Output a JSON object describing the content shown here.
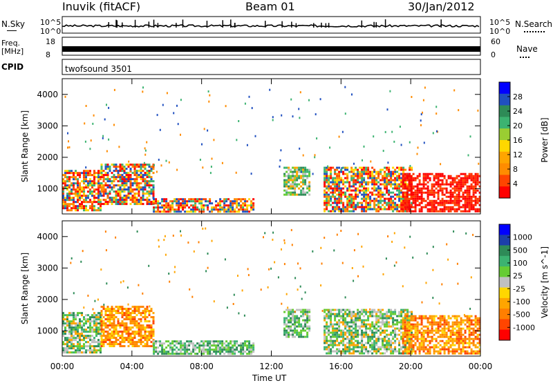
{
  "header": {
    "station": "Inuvik (fitACF)",
    "beam": "Beam 01",
    "date": "30/Jan/2012"
  },
  "top_panels": {
    "nsky_label": "N.Sky",
    "nsearch_label": "N.Search",
    "freq_label": "Freq.",
    "freq_unit": "[MHz]",
    "nave_label": "Nave",
    "cpid_label": "CPID",
    "cpid_value": "twofsound 3501",
    "nsky_ticks": [
      "10^5",
      "10^0"
    ],
    "nsearch_ticks": [
      "10^5",
      "10^0"
    ],
    "freq_ticks": [
      "18",
      "8"
    ],
    "nave_ticks": [
      "60",
      "0"
    ]
  },
  "chart_data": [
    {
      "type": "heatmap",
      "name": "power",
      "ylabel": "Slant Range [km]",
      "xlabel": "Time UT",
      "x_ticks": [
        "00:00",
        "04:00",
        "08:00",
        "12:00",
        "16:00",
        "20:00",
        "00:00"
      ],
      "y_ticks": [
        "1000",
        "2000",
        "3000",
        "4000"
      ],
      "ylim": [
        200,
        4500
      ],
      "xlim_hours": [
        0,
        24
      ],
      "colorbar": {
        "label": "Power [dB]",
        "ticks": [
          "4",
          "8",
          "12",
          "16",
          "20",
          "24",
          "28"
        ],
        "colors": [
          "#0000ff",
          "#2050c0",
          "#2e8b57",
          "#3cb371",
          "#9acd32",
          "#ffd700",
          "#ffa500",
          "#ff8c00",
          "#ff4500",
          "#ff0000"
        ]
      },
      "regions": [
        {
          "t0": 0.0,
          "t1": 2.2,
          "r0": 300,
          "r1": 1600,
          "level": "mixed-red"
        },
        {
          "t0": 2.2,
          "t1": 5.2,
          "r0": 500,
          "r1": 1800,
          "level": "mixed-red"
        },
        {
          "t0": 5.2,
          "t1": 11.0,
          "r0": 300,
          "r1": 700,
          "level": "mixed-red"
        },
        {
          "t0": 12.7,
          "t1": 14.2,
          "r0": 800,
          "r1": 1700,
          "level": "mixed-green"
        },
        {
          "t0": 15.0,
          "t1": 20.0,
          "r0": 300,
          "r1": 1700,
          "level": "mixed-red"
        },
        {
          "t0": 19.5,
          "t1": 24.0,
          "r0": 300,
          "r1": 1500,
          "level": "red"
        }
      ]
    },
    {
      "type": "heatmap",
      "name": "velocity",
      "ylabel": "Slant Range [km]",
      "xlabel": "Time UT",
      "x_ticks": [
        "00:00",
        "04:00",
        "08:00",
        "12:00",
        "16:00",
        "20:00",
        "00:00"
      ],
      "y_ticks": [
        "1000",
        "2000",
        "3000",
        "4000"
      ],
      "ylim": [
        200,
        4500
      ],
      "xlim_hours": [
        0,
        24
      ],
      "colorbar": {
        "label": "Velocity [m s^-1]",
        "ticks": [
          "1000",
          "500",
          "100",
          "25",
          "-25",
          "-100",
          "-500",
          "-1000"
        ],
        "colors": [
          "#0000ff",
          "#1c3faa",
          "#2e8b57",
          "#3cb371",
          "#66cc33",
          "#c0c0c0",
          "#ffd700",
          "#ffa500",
          "#ff7f00",
          "#ff4500",
          "#ff0000"
        ]
      },
      "regions": [
        {
          "t0": 0.0,
          "t1": 2.2,
          "r0": 300,
          "r1": 1600,
          "level": "mixed-green"
        },
        {
          "t0": 2.2,
          "t1": 5.2,
          "r0": 500,
          "r1": 1800,
          "level": "orange"
        },
        {
          "t0": 5.2,
          "t1": 11.0,
          "r0": 300,
          "r1": 700,
          "level": "green"
        },
        {
          "t0": 12.7,
          "t1": 14.2,
          "r0": 800,
          "r1": 1700,
          "level": "green"
        },
        {
          "t0": 15.0,
          "t1": 20.0,
          "r0": 300,
          "r1": 1700,
          "level": "mixed-green"
        },
        {
          "t0": 19.5,
          "t1": 24.0,
          "r0": 300,
          "r1": 1500,
          "level": "orange"
        }
      ]
    }
  ]
}
